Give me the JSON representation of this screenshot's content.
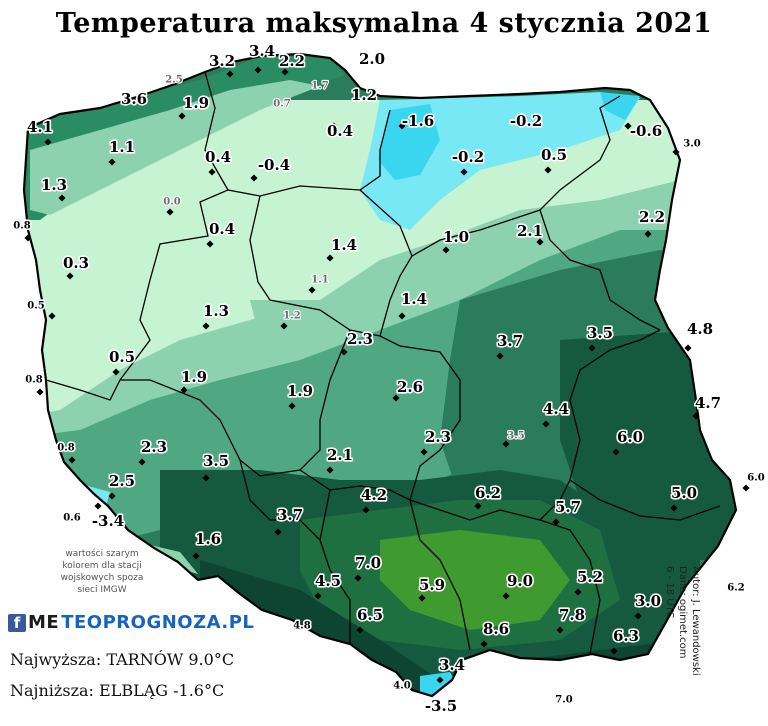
{
  "title": "Temperatura maksymalna 4 stycznia 2021",
  "map": {
    "units": "°C",
    "colors": {
      "sea": "#1b6e8c",
      "cold_cyan": "#3ad6f0",
      "light_cyan": "#78e8f4",
      "pale_green": "#c6f3d2",
      "light_green": "#8dd2ae",
      "mid_green": "#4fa882",
      "dark_green": "#2a7c5c",
      "deep_green": "#155a40",
      "bright_green": "#3f9a2f",
      "mountain_dark": "#0d4532",
      "border": "#000000"
    },
    "stations": [
      {
        "value": "3.4"
      },
      {
        "value": "3.2"
      },
      {
        "value": "2.2"
      },
      {
        "value": "2.0"
      },
      {
        "value": "2.5",
        "gray": true
      },
      {
        "value": "1.7",
        "gray": true
      },
      {
        "value": "1.2"
      },
      {
        "value": "0.7",
        "gray": true
      },
      {
        "value": "3.6"
      },
      {
        "value": "1.9"
      },
      {
        "value": "4.1"
      },
      {
        "value": "-1.6"
      },
      {
        "value": "-0.2"
      },
      {
        "value": "0.4"
      },
      {
        "value": "-0.6"
      },
      {
        "value": "3.0"
      },
      {
        "value": "1.1"
      },
      {
        "value": "0.4"
      },
      {
        "value": "-0.4"
      },
      {
        "value": "-0.2"
      },
      {
        "value": "0.5"
      },
      {
        "value": "1.3"
      },
      {
        "value": "0.0",
        "gray": true
      },
      {
        "value": "0.8"
      },
      {
        "value": "0.4"
      },
      {
        "value": "1.4"
      },
      {
        "value": "1.0"
      },
      {
        "value": "2.1"
      },
      {
        "value": "2.2"
      },
      {
        "value": "0.3"
      },
      {
        "value": "1.1",
        "gray": true
      },
      {
        "value": "0.5"
      },
      {
        "value": "1.3"
      },
      {
        "value": "1.2",
        "gray": true
      },
      {
        "value": "1.4"
      },
      {
        "value": "2.3"
      },
      {
        "value": "3.7"
      },
      {
        "value": "3.5"
      },
      {
        "value": "4.8"
      },
      {
        "value": "0.5"
      },
      {
        "value": "0.8"
      },
      {
        "value": "1.9"
      },
      {
        "value": "1.9"
      },
      {
        "value": "2.6"
      },
      {
        "value": "4.4"
      },
      {
        "value": "4.7"
      },
      {
        "value": "0.8"
      },
      {
        "value": "2.3"
      },
      {
        "value": "2.3"
      },
      {
        "value": "3.5",
        "gray": true
      },
      {
        "value": "6.0"
      },
      {
        "value": "3.5"
      },
      {
        "value": "2.1"
      },
      {
        "value": "6.0"
      },
      {
        "value": "2.5"
      },
      {
        "value": "0.6"
      },
      {
        "value": "-3.4"
      },
      {
        "value": "3.7"
      },
      {
        "value": "4.2"
      },
      {
        "value": "6.2"
      },
      {
        "value": "5.7"
      },
      {
        "value": "5.0"
      },
      {
        "value": "1.6"
      },
      {
        "value": "7.0"
      },
      {
        "value": "4.5"
      },
      {
        "value": "5.9"
      },
      {
        "value": "9.0"
      },
      {
        "value": "5.2"
      },
      {
        "value": "6.2"
      },
      {
        "value": "6.5"
      },
      {
        "value": "7.8"
      },
      {
        "value": "3.0"
      },
      {
        "value": "4.8"
      },
      {
        "value": "8.6"
      },
      {
        "value": "6.3"
      },
      {
        "value": "3.4"
      },
      {
        "value": "4.0"
      },
      {
        "value": "-3.5"
      },
      {
        "value": "7.0"
      }
    ]
  },
  "note": "wartości szarym kolorem dla stacji wojskowych spoza sieci IMGW",
  "brand": {
    "fb": "f",
    "name_a": "ME",
    "name_b": "TEOPROGNOZA.PL"
  },
  "stats": {
    "max": "Najwyższa: TARNÓW 9.0°C",
    "min": "Najniższa: ELBLĄG -1.6°C"
  },
  "credit": {
    "author": "Autor: J. Lewandowski",
    "data": "Dane: ogimet.com",
    "hours": "6 - 18 UTC"
  }
}
